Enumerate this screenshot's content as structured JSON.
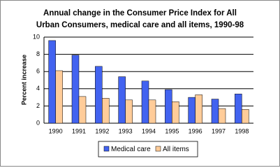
{
  "chart_data": {
    "type": "bar",
    "title": "Annual change in the Consumer Price Index for All\nUrban Consumers, medical care and all items, 1990-98",
    "y_label": "Percent increase",
    "categories": [
      "1990",
      "1991",
      "1992",
      "1993",
      "1994",
      "1995",
      "1996",
      "1997",
      "1998"
    ],
    "series": [
      {
        "name": "Medical care",
        "color": "#4263f0",
        "values": [
          9.6,
          7.9,
          6.6,
          5.4,
          4.9,
          3.9,
          3.0,
          2.8,
          3.4
        ]
      },
      {
        "name": "All items",
        "color": "#ffcc99",
        "values": [
          6.1,
          3.1,
          2.9,
          2.7,
          2.7,
          2.5,
          3.3,
          1.7,
          1.6
        ]
      }
    ],
    "ylim": [
      0,
      10
    ],
    "yticks": [
      0,
      2,
      4,
      6,
      8,
      10
    ],
    "grid": true
  }
}
